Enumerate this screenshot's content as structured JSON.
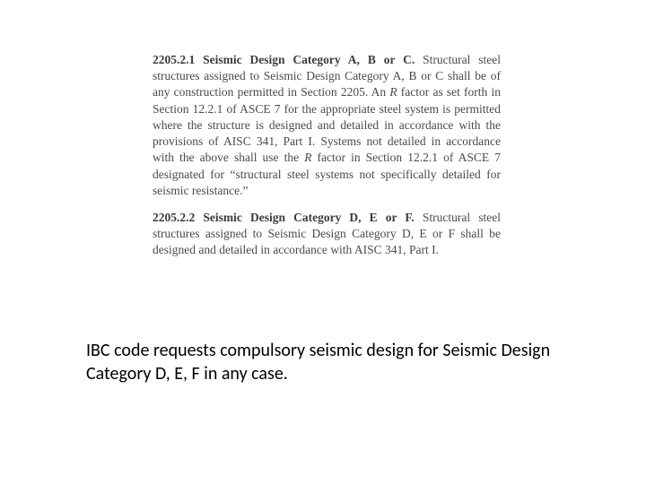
{
  "excerpt": {
    "p1": {
      "head": "2205.2.1 Seismic Design Category A, B or C.",
      "body_a": " Structural steel structures assigned to Seismic Design Category A, B or C shall be of any construction permitted in Section 2205. An ",
      "r1": "R",
      "body_b": " factor as set forth in Section 12.2.1 of ASCE 7 for the appropriate steel system is permitted where the structure is designed and detailed in accordance with the provisions of AISC 341, Part I. Systems not detailed in accordance with the above shall use the ",
      "r2": "R",
      "body_c": " factor in Section 12.2.1 of ASCE 7 designated for “structural steel systems not specifically detailed for seismic resistance.”"
    },
    "p2": {
      "head": "2205.2.2 Seismic Design Category D, E or F.",
      "body": " Structural steel structures assigned to Seismic Design Category D, E or F shall be designed and detailed in accordance with AISC 341, Part I."
    }
  },
  "caption": "IBC code requests compulsory seismic design for Seismic Design Category D, E, F in any case."
}
